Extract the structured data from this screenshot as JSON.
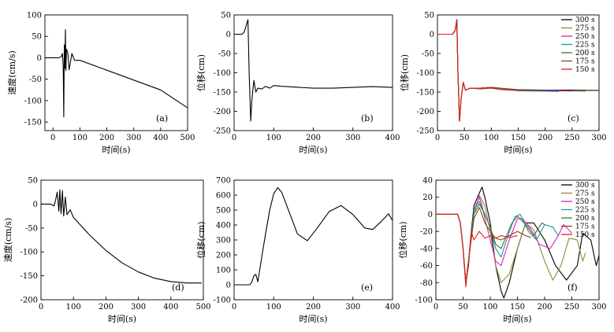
{
  "colors": {
    "300 s": "#000000",
    "275 s": "#8c8c3c",
    "250 s": "#e020c0",
    "225 s": "#1f9aa0",
    "200 s": "#3a7a3a",
    "175 s": "#8b4513",
    "150 s": "#e02020"
  },
  "chart_data": [
    {
      "id": "a",
      "type": "line",
      "panel_label": "(a)",
      "xlabel": "时间(s)",
      "ylabel": "速度(cm/s)",
      "xlim": [
        -30,
        500
      ],
      "ylim": [
        -170,
        100
      ],
      "xticks": [
        0,
        100,
        200,
        300,
        400,
        500
      ],
      "yticks": [
        -150,
        -100,
        -50,
        0,
        50,
        100
      ],
      "series": [
        {
          "color": "#000000",
          "x": [
            -30,
            20,
            30,
            35,
            38,
            40,
            42,
            44,
            46,
            48,
            50,
            55,
            60,
            70,
            80,
            100,
            200,
            300,
            400,
            500
          ],
          "y": [
            0,
            0,
            2,
            10,
            -20,
            -138,
            30,
            -25,
            66,
            -30,
            20,
            12,
            -28,
            10,
            -6,
            -6,
            -29,
            -52,
            -75,
            -117
          ]
        }
      ]
    },
    {
      "id": "b",
      "type": "line",
      "panel_label": "(b)",
      "xlabel": "时间(s)",
      "ylabel": "位移(cm)",
      "xlim": [
        0,
        400
      ],
      "ylim": [
        -250,
        50
      ],
      "xticks": [
        0,
        100,
        200,
        300,
        400
      ],
      "yticks": [
        -250,
        -200,
        -150,
        -100,
        -50,
        0,
        50
      ],
      "series": [
        {
          "color": "#000000",
          "x": [
            0,
            20,
            25,
            30,
            35,
            38,
            42,
            45,
            50,
            55,
            60,
            70,
            80,
            90,
            100,
            120,
            150,
            200,
            250,
            300,
            350,
            400
          ],
          "y": [
            0,
            0,
            5,
            20,
            38,
            -100,
            -225,
            -170,
            -120,
            -150,
            -140,
            -142,
            -135,
            -140,
            -133,
            -135,
            -137,
            -140,
            -140,
            -138,
            -136,
            -138
          ]
        }
      ]
    },
    {
      "id": "c",
      "type": "line",
      "panel_label": "(c)",
      "xlabel": "时间(s)",
      "ylabel": "位移(cm)",
      "xlim": [
        0,
        300
      ],
      "ylim": [
        -250,
        50
      ],
      "xticks": [
        0,
        50,
        100,
        150,
        200,
        250,
        300
      ],
      "yticks": [
        -250,
        -200,
        -150,
        -100,
        -50,
        0,
        50
      ],
      "legend": [
        "300 s",
        "275 s",
        "250 s",
        "225 s",
        "200 s",
        "175 s",
        "150 s"
      ],
      "series": [
        {
          "name": "300 s",
          "color": "#000000",
          "x": [
            0,
            28,
            33,
            36,
            38,
            41,
            44,
            48,
            52,
            60,
            80,
            100,
            150,
            200,
            250,
            300
          ],
          "y": [
            0,
            0,
            10,
            38,
            -100,
            -225,
            -165,
            -125,
            -145,
            -140,
            -140,
            -138,
            -144,
            -145,
            -145,
            -146
          ]
        },
        {
          "name": "275 s",
          "color": "#8c8c3c",
          "x": [
            0,
            28,
            33,
            36,
            38,
            41,
            44,
            48,
            52,
            60,
            80,
            100,
            150,
            200,
            275
          ],
          "y": [
            0,
            0,
            10,
            38,
            -100,
            -225,
            -165,
            -125,
            -145,
            -140,
            -140,
            -138,
            -146,
            -147,
            -148
          ]
        },
        {
          "name": "250 s",
          "color": "#e020c0",
          "x": [
            0,
            28,
            33,
            36,
            38,
            41,
            44,
            48,
            52,
            60,
            80,
            100,
            150,
            200,
            250
          ],
          "y": [
            0,
            0,
            10,
            38,
            -100,
            -225,
            -165,
            -125,
            -145,
            -140,
            -140,
            -138,
            -145,
            -146,
            -147
          ]
        },
        {
          "name": "225 s",
          "color": "#1f9aa0",
          "x": [
            0,
            28,
            33,
            36,
            38,
            41,
            44,
            48,
            52,
            60,
            80,
            100,
            150,
            200,
            225
          ],
          "y": [
            0,
            0,
            10,
            38,
            -100,
            -225,
            -165,
            -125,
            -145,
            -140,
            -140,
            -138,
            -147,
            -148,
            -149
          ]
        },
        {
          "name": "200 s",
          "color": "#3a7a3a",
          "x": [
            0,
            28,
            33,
            36,
            38,
            41,
            44,
            48,
            52,
            60,
            80,
            100,
            150,
            200
          ],
          "y": [
            0,
            0,
            10,
            38,
            -100,
            -225,
            -165,
            -125,
            -145,
            -140,
            -140,
            -138,
            -146,
            -147
          ]
        },
        {
          "name": "175 s",
          "color": "#8b4513",
          "x": [
            0,
            28,
            33,
            36,
            38,
            41,
            44,
            48,
            52,
            60,
            80,
            100,
            150,
            175
          ],
          "y": [
            0,
            0,
            10,
            38,
            -100,
            -225,
            -165,
            -125,
            -145,
            -140,
            -140,
            -138,
            -145,
            -146
          ]
        },
        {
          "name": "150 s",
          "color": "#e02020",
          "x": [
            0,
            28,
            33,
            36,
            38,
            41,
            44,
            48,
            52,
            60,
            80,
            100,
            120,
            150
          ],
          "y": [
            0,
            0,
            10,
            38,
            -100,
            -225,
            -165,
            -125,
            -145,
            -140,
            -142,
            -140,
            -144,
            -146
          ]
        }
      ]
    },
    {
      "id": "d",
      "type": "line",
      "panel_label": "(d)",
      "xlabel": "时间(s)",
      "ylabel": "速度(cm/s)",
      "xlim": [
        0,
        500
      ],
      "ylim": [
        -200,
        50
      ],
      "xticks": [
        0,
        100,
        200,
        300,
        400,
        500
      ],
      "yticks": [
        -200,
        -150,
        -100,
        -50,
        0,
        50
      ],
      "series": [
        {
          "color": "#000000",
          "x": [
            0,
            30,
            40,
            45,
            50,
            55,
            58,
            62,
            66,
            70,
            75,
            80,
            90,
            100,
            150,
            200,
            250,
            300,
            350,
            400,
            450,
            495
          ],
          "y": [
            0,
            0,
            -4,
            8,
            25,
            -15,
            30,
            -20,
            28,
            -25,
            15,
            -22,
            -12,
            -28,
            -65,
            -97,
            -123,
            -142,
            -155,
            -162,
            -165,
            -165
          ]
        }
      ]
    },
    {
      "id": "e",
      "type": "line",
      "panel_label": "(e)",
      "xlabel": "时间(s)",
      "ylabel": "位移(cm)",
      "xlim": [
        0,
        400
      ],
      "ylim": [
        -100,
        700
      ],
      "xticks": [
        0,
        100,
        200,
        300,
        400
      ],
      "yticks": [
        -100,
        0,
        100,
        200,
        300,
        400,
        500,
        600,
        700
      ],
      "series": [
        {
          "color": "#000000",
          "x": [
            0,
            40,
            45,
            50,
            55,
            60,
            70,
            80,
            90,
            100,
            110,
            120,
            140,
            160,
            185,
            210,
            240,
            270,
            300,
            330,
            350,
            370,
            390,
            400
          ],
          "y": [
            0,
            0,
            20,
            60,
            70,
            20,
            190,
            350,
            500,
            610,
            650,
            620,
            480,
            340,
            295,
            380,
            490,
            530,
            470,
            380,
            370,
            420,
            475,
            430
          ]
        }
      ]
    },
    {
      "id": "f",
      "type": "line",
      "panel_label": "(f)",
      "xlabel": "时间(s)",
      "ylabel": "位移(cm)",
      "xlim": [
        0,
        300
      ],
      "ylim": [
        -100,
        40
      ],
      "xticks": [
        0,
        50,
        100,
        150,
        200,
        250,
        300
      ],
      "yticks": [
        -100,
        -80,
        -60,
        -40,
        -20,
        0,
        20,
        40
      ],
      "legend": [
        "300 s",
        "275 s",
        "250 s",
        "225 s",
        "200 s",
        "175 s",
        "150 s"
      ],
      "series": [
        {
          "name": "300 s",
          "color": "#000000",
          "x": [
            0,
            40,
            45,
            50,
            55,
            60,
            65,
            70,
            80,
            85,
            90,
            100,
            110,
            120,
            125,
            135,
            150,
            165,
            180,
            200,
            220,
            240,
            260,
            270,
            285,
            295,
            300
          ],
          "y": [
            0,
            0,
            -10,
            -40,
            -80,
            -60,
            -20,
            10,
            25,
            32,
            20,
            -10,
            -60,
            -90,
            -98,
            -80,
            -40,
            -10,
            -10,
            -30,
            -60,
            -77,
            -60,
            -22,
            -30,
            -60,
            -48
          ]
        },
        {
          "name": "275 s",
          "color": "#8c8c3c",
          "x": [
            0,
            40,
            45,
            50,
            55,
            60,
            70,
            80,
            90,
            100,
            110,
            120,
            135,
            150,
            165,
            180,
            200,
            215,
            230,
            245,
            260,
            270,
            275
          ],
          "y": [
            0,
            0,
            -10,
            -40,
            -80,
            -55,
            0,
            22,
            10,
            -20,
            -60,
            -80,
            -70,
            -40,
            -10,
            -18,
            -55,
            -77,
            -60,
            -28,
            -30,
            -55,
            -45
          ]
        },
        {
          "name": "250 s",
          "color": "#e020c0",
          "x": [
            0,
            40,
            45,
            50,
            55,
            60,
            70,
            80,
            85,
            90,
            100,
            110,
            120,
            135,
            150,
            160,
            175,
            190,
            210,
            225,
            235,
            250
          ],
          "y": [
            0,
            0,
            -10,
            -40,
            -80,
            -55,
            5,
            20,
            10,
            -5,
            -30,
            -55,
            -60,
            -30,
            -5,
            -5,
            -18,
            -35,
            -40,
            -25,
            -12,
            -22
          ]
        },
        {
          "name": "225 s",
          "color": "#1f9aa0",
          "x": [
            0,
            40,
            45,
            50,
            55,
            60,
            70,
            80,
            90,
            100,
            110,
            120,
            130,
            145,
            155,
            170,
            185,
            200,
            215,
            225
          ],
          "y": [
            0,
            0,
            -10,
            -40,
            -80,
            -55,
            5,
            15,
            0,
            -15,
            -40,
            -50,
            -30,
            -3,
            0,
            -20,
            -30,
            -12,
            -15,
            -25
          ]
        },
        {
          "name": "200 s",
          "color": "#3a7a3a",
          "x": [
            0,
            40,
            45,
            50,
            55,
            60,
            70,
            80,
            90,
            100,
            110,
            120,
            130,
            140,
            150,
            165,
            180,
            195,
            200
          ],
          "y": [
            0,
            0,
            -10,
            -40,
            -80,
            -55,
            0,
            12,
            0,
            -15,
            -35,
            -40,
            -25,
            -10,
            -2,
            -12,
            -25,
            -10,
            -12
          ]
        },
        {
          "name": "175 s",
          "color": "#8b4513",
          "x": [
            0,
            40,
            45,
            50,
            55,
            60,
            70,
            80,
            90,
            100,
            110,
            120,
            135,
            150,
            165,
            175
          ],
          "y": [
            0,
            0,
            -10,
            -40,
            -80,
            -55,
            -5,
            8,
            -10,
            -20,
            -28,
            -30,
            -25,
            -20,
            -25,
            -27
          ]
        },
        {
          "name": "150 s",
          "color": "#e02020",
          "x": [
            0,
            40,
            45,
            50,
            55,
            60,
            65,
            70,
            80,
            90,
            100,
            110,
            120,
            135,
            150
          ],
          "y": [
            0,
            0,
            -10,
            -40,
            -85,
            -55,
            -20,
            -30,
            -20,
            -28,
            -25,
            -28,
            -25,
            -27,
            -25
          ]
        }
      ]
    }
  ]
}
